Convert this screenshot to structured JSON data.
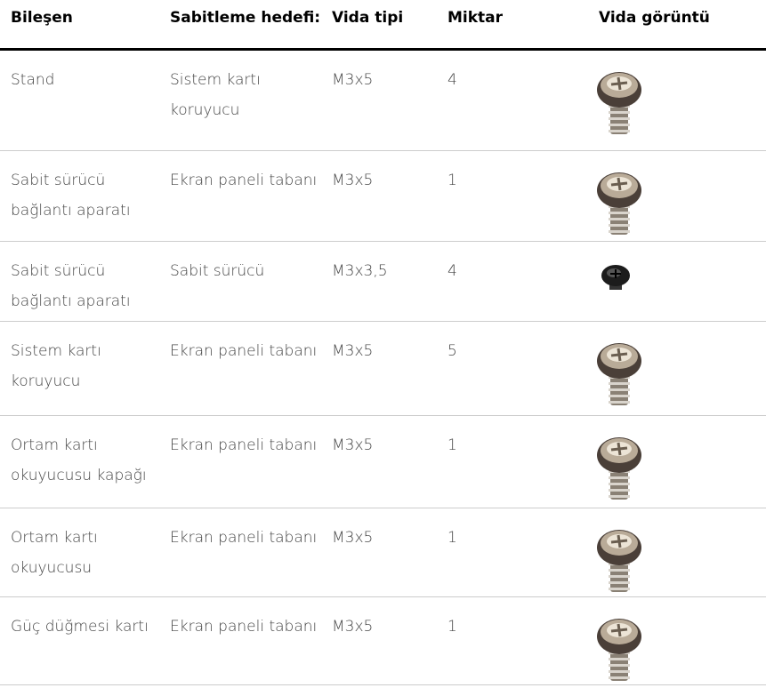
{
  "table": {
    "header": [
      "Bileşen",
      "Sabitleme hedefi:",
      "Vida tipi",
      "Miktar",
      "Vida görüntü"
    ],
    "rows": [
      [
        "Stand",
        "Sistem kartı koruyucu",
        "M3x5",
        4
      ],
      [
        "Sabit sürücü bağlantı aparatı",
        "Ekran paneli tabanı",
        "M3x5",
        1
      ],
      [
        "Sabit sürücü bağlantı aparatı",
        "Sabit sürücü",
        "M3x3,5",
        4
      ],
      [
        "Sistem kartı koruyucu",
        "Ekran paneli tabanı",
        "M3x5",
        5
      ],
      [
        "Ortam kartı okuyucusu kapağı",
        "Ekran paneli tabanı",
        "M3x5",
        1
      ],
      [
        "Ortam kartı okuyucusu",
        "Ekran paneli tabanı",
        "M3x5",
        1
      ],
      [
        "Güç düğmesi kartı",
        "Ekran paneli tabanı",
        "M3x5",
        1
      ]
    ]
  }
}
